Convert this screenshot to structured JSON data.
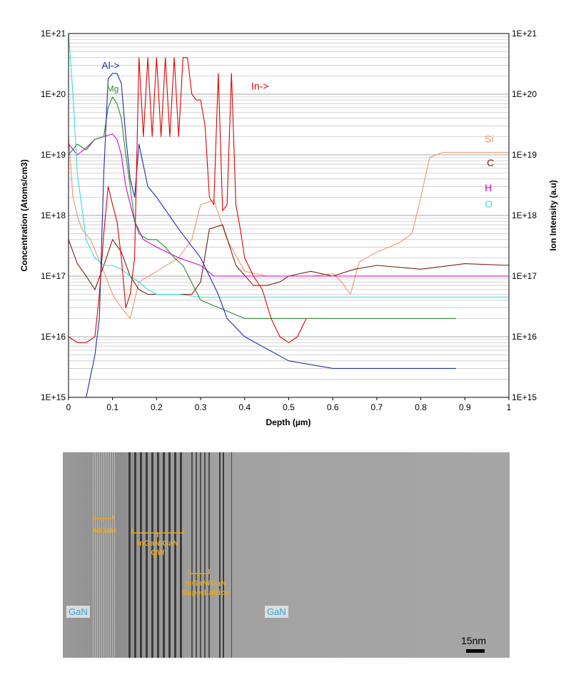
{
  "chart_data": {
    "type": "line",
    "xlabel": "Depth (µm)",
    "ylabel": "Concentration (Atoms/cm3)",
    "y2label": "Ion Intensity (a.u)",
    "xlim": [
      0,
      1
    ],
    "ylim": [
      1000000000000000.0,
      1e+21
    ],
    "y2lim": [
      1000000000000000.0,
      1e+21
    ],
    "yscale": "log",
    "grid": true,
    "x_ticks": [
      "0",
      "0.1",
      "0.2",
      "0.3",
      "0.4",
      "0.5",
      "0.6",
      "0.7",
      "0.8",
      "0.9",
      "1"
    ],
    "y_ticks": [
      "1E+15",
      "1E+16",
      "1E+17",
      "1E+18",
      "1E+19",
      "1E+20",
      "1E+21"
    ],
    "y2_ticks": [
      "1E+15",
      "1E+16",
      "1E+17",
      "1E+18",
      "1E+19",
      "1E+20",
      "1E+21"
    ],
    "series": [
      {
        "name": "Si",
        "color": "#f0956a",
        "axis": "left",
        "x": [
          0,
          0.01,
          0.02,
          0.03,
          0.05,
          0.08,
          0.1,
          0.12,
          0.14,
          0.16,
          0.2,
          0.25,
          0.28,
          0.3,
          0.33,
          0.36,
          0.4,
          0.45,
          0.5,
          0.55,
          0.6,
          0.62,
          0.64,
          0.66,
          0.7,
          0.75,
          0.78,
          0.8,
          0.82,
          0.85,
          0.9,
          0.95,
          1.0
        ],
        "y": [
          2e+19,
          2e+18,
          1e+18,
          6e+17,
          4e+17,
          1.2e+17,
          5e+16,
          3e+16,
          2e+16,
          8e+16,
          1.2e+17,
          2e+17,
          4e+17,
          1.5e+18,
          1.8e+18,
          4e+17,
          1.2e+17,
          1e+17,
          1e+17,
          1e+17,
          1.1e+17,
          8e+16,
          5e+16,
          1.7e+17,
          2.5e+17,
          3.5e+17,
          5e+17,
          2e+18,
          9e+18,
          1.1e+19,
          1.1e+19,
          1.1e+19,
          1.1e+19
        ]
      },
      {
        "name": "C",
        "color": "#7b1e10",
        "axis": "left",
        "x": [
          0,
          0.02,
          0.04,
          0.06,
          0.08,
          0.1,
          0.12,
          0.14,
          0.16,
          0.18,
          0.2,
          0.25,
          0.28,
          0.3,
          0.32,
          0.35,
          0.38,
          0.42,
          0.45,
          0.48,
          0.5,
          0.55,
          0.6,
          0.65,
          0.7,
          0.8,
          0.9,
          1.0
        ],
        "y": [
          4e+17,
          1.6e+17,
          1e+17,
          6e+16,
          1.5e+17,
          4e+17,
          2.5e+17,
          1e+17,
          6e+16,
          5e+16,
          5e+16,
          5e+16,
          5e+16,
          8e+16,
          6e+17,
          7e+17,
          1.5e+17,
          7e+16,
          7e+16,
          8e+16,
          1e+17,
          1.2e+17,
          1e+17,
          1.3e+17,
          1.5e+17,
          1.3e+17,
          1.6e+17,
          1.5e+17
        ]
      },
      {
        "name": "H",
        "color": "#d400d4",
        "axis": "left",
        "x": [
          0,
          0.02,
          0.04,
          0.06,
          0.08,
          0.1,
          0.11,
          0.12,
          0.13,
          0.15,
          0.17,
          0.2,
          0.25,
          0.3,
          0.33,
          0.36,
          0.4,
          0.5,
          0.6,
          0.7,
          0.8,
          0.9,
          1.0
        ],
        "y": [
          1.5e+19,
          1e+19,
          1.3e+19,
          1.8e+19,
          2e+19,
          2.2e+19,
          1.8e+19,
          1e+19,
          3e+18,
          8e+17,
          4e+17,
          3e+17,
          2e+17,
          1.5e+17,
          1e+17,
          1e+17,
          1e+17,
          1e+17,
          1e+17,
          1e+17,
          1e+17,
          1e+17,
          1e+17
        ]
      },
      {
        "name": "O",
        "color": "#30e0e0",
        "axis": "left",
        "x": [
          0,
          0.01,
          0.02,
          0.04,
          0.06,
          0.08,
          0.1,
          0.12,
          0.14,
          0.16,
          0.18,
          0.2,
          0.25,
          0.3,
          0.4,
          0.5,
          0.6,
          0.7,
          0.8,
          0.9,
          1.0
        ],
        "y": [
          1e+21,
          1e+20,
          5e+18,
          4e+17,
          2e+17,
          1.5e+17,
          1.5e+17,
          1.3e+17,
          1e+17,
          8e+16,
          6e+16,
          5e+16,
          5e+16,
          4.5e+16,
          4.5e+16,
          4.5e+16,
          4.5e+16,
          4.5e+16,
          4.5e+16,
          4.5e+16,
          4.5e+16
        ]
      },
      {
        "name": "Mg",
        "color": "#2b8a2b",
        "axis": "left",
        "x": [
          0,
          0.02,
          0.04,
          0.06,
          0.08,
          0.09,
          0.1,
          0.11,
          0.12,
          0.13,
          0.14,
          0.15,
          0.16,
          0.18,
          0.2,
          0.22,
          0.24,
          0.26,
          0.3,
          0.4,
          0.5,
          0.6,
          0.7,
          0.8,
          0.88
        ],
        "y": [
          1e+19,
          1.5e+19,
          1.2e+19,
          1.8e+19,
          2e+19,
          6e+19,
          9e+19,
          7e+19,
          4e+19,
          1e+19,
          3e+18,
          8e+17,
          5e+17,
          4e+17,
          4e+17,
          3e+17,
          2e+17,
          1.5e+17,
          4e+16,
          2e+16,
          2e+16,
          2e+16,
          2e+16,
          2e+16,
          2e+16
        ]
      },
      {
        "name": "Al",
        "color": "#1f2bb3",
        "axis": "left",
        "x": [
          0,
          0.02,
          0.04,
          0.06,
          0.07,
          0.08,
          0.09,
          0.1,
          0.11,
          0.12,
          0.13,
          0.14,
          0.15,
          0.16,
          0.18,
          0.2,
          0.25,
          0.3,
          0.32,
          0.34,
          0.36,
          0.4,
          0.5,
          0.6,
          0.7,
          0.8,
          0.88
        ],
        "y": [
          1000000000000000.0,
          1000000000000000.0,
          1000000000000000.0,
          5000000000000000.0,
          2e+16,
          5e+18,
          1.8e+20,
          2.2e+20,
          2.2e+20,
          1.5e+20,
          2e+19,
          4e+18,
          2e+18,
          1.5e+19,
          3e+18,
          2e+18,
          6e+17,
          2e+17,
          1e+17,
          5e+16,
          2e+16,
          1e+16,
          4000000000000000.0,
          3000000000000000.0,
          3000000000000000.0,
          3000000000000000.0,
          3000000000000000.0
        ]
      },
      {
        "name": "In",
        "color": "#e00000",
        "axis": "right",
        "x": [
          0,
          0.02,
          0.04,
          0.06,
          0.07,
          0.08,
          0.09,
          0.1,
          0.11,
          0.12,
          0.13,
          0.14,
          0.15,
          0.16,
          0.17,
          0.18,
          0.19,
          0.2,
          0.21,
          0.22,
          0.23,
          0.24,
          0.25,
          0.26,
          0.27,
          0.28,
          0.29,
          0.3,
          0.31,
          0.32,
          0.33,
          0.34,
          0.35,
          0.36,
          0.37,
          0.38,
          0.39,
          0.4,
          0.42,
          0.44,
          0.46,
          0.48,
          0.5,
          0.52,
          0.54
        ],
        "y": [
          1e+16,
          8000000000000000.0,
          8000000000000000.0,
          1e+16,
          5e+16,
          5e+17,
          3e+18,
          1.5e+18,
          8e+17,
          2e+17,
          3e+16,
          5e+16,
          2e+17,
          4e+20,
          2e+19,
          4e+20,
          2e+19,
          4e+20,
          2e+19,
          4e+20,
          2e+19,
          4e+20,
          2e+19,
          4e+20,
          4e+20,
          1e+20,
          8e+19,
          8e+19,
          3e+19,
          2e+18,
          1.5e+18,
          2.2e+20,
          1.2e+18,
          1.5e+18,
          2.2e+20,
          1.5e+18,
          6e+17,
          2e+17,
          1e+17,
          6e+16,
          2e+16,
          1e+16,
          8000000000000000.0,
          1e+16,
          2e+16
        ]
      }
    ],
    "annotations": [
      {
        "text": "Al->",
        "color": "#1f2bb3"
      },
      {
        "text": "Mg",
        "color": "#2b8a2b"
      },
      {
        "text": "In->",
        "color": "#e00000"
      },
      {
        "text": "Si",
        "color": "#f0956a"
      },
      {
        "text": "C",
        "color": "#7b1e10"
      },
      {
        "text": "H",
        "color": "#d400d4"
      },
      {
        "text": "O",
        "color": "#30e0e0"
      }
    ]
  },
  "tem": {
    "labels": {
      "algan": "AlGaN",
      "ingan_qw_line1": "InGaN/GaN",
      "ingan_qw_line2": "QW",
      "ingan_sl_line1": "InGaN/GaN",
      "ingan_sl_line2": "SuperLattice",
      "gan_left": "GaN",
      "gan_right": "GaN",
      "scale": "15nm"
    },
    "label_color": "#e8a81a",
    "gan_color": "#2aa8d8"
  }
}
